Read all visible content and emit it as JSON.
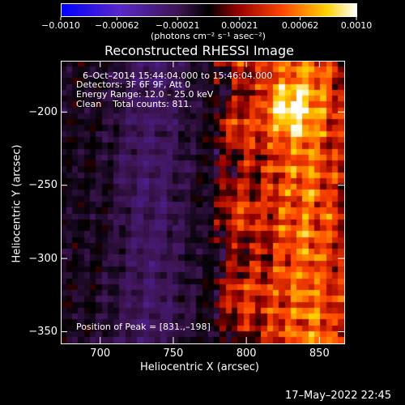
{
  "colorbar": {
    "tick_labels": [
      "−0.0010",
      "−0.00062",
      "−0.00021",
      "0.00021",
      "0.00062",
      "0.0010"
    ],
    "tick_values": [
      -0.001,
      -0.00062,
      -0.00021,
      0.00021,
      0.00062,
      0.001
    ],
    "range": [
      -0.001,
      0.001
    ],
    "units_label": "(photons cm⁻² s⁻¹ asec⁻²)",
    "colormap": "blue-purple-black-red-orange-yellow-white"
  },
  "chart_data": {
    "type": "heatmap",
    "title": "Reconstructed RHESSI Image",
    "xlabel": "Heliocentric X (arcsec)",
    "ylabel": "Heliocentric Y (arcsec)",
    "xlim": [
      673,
      867
    ],
    "ylim": [
      -358,
      -165
    ],
    "x_ticks": [
      700,
      750,
      800,
      850
    ],
    "y_ticks": [
      -200,
      -250,
      -300,
      -350
    ],
    "x_tick_labels": [
      "700",
      "750",
      "800",
      "850"
    ],
    "y_tick_labels": [
      "−200",
      "−250",
      "−300",
      "−350"
    ],
    "annotations": [
      "6–Oct–2014 15:44:04.000 to 15:46:04.000",
      "Detectors: 3F 6F 9F, Att 0",
      "Energy Range: 12.0 – 25.0 keV",
      "Clean    Total counts: 811.",
      "Position of Peak = [831.,–198]"
    ],
    "peak_position": [
      831,
      -198
    ],
    "total_counts": 811,
    "energy_range_kev": [
      12.0,
      25.0
    ],
    "grid": false
  },
  "footer": {
    "timestamp": "17–May–2022 22:45"
  }
}
